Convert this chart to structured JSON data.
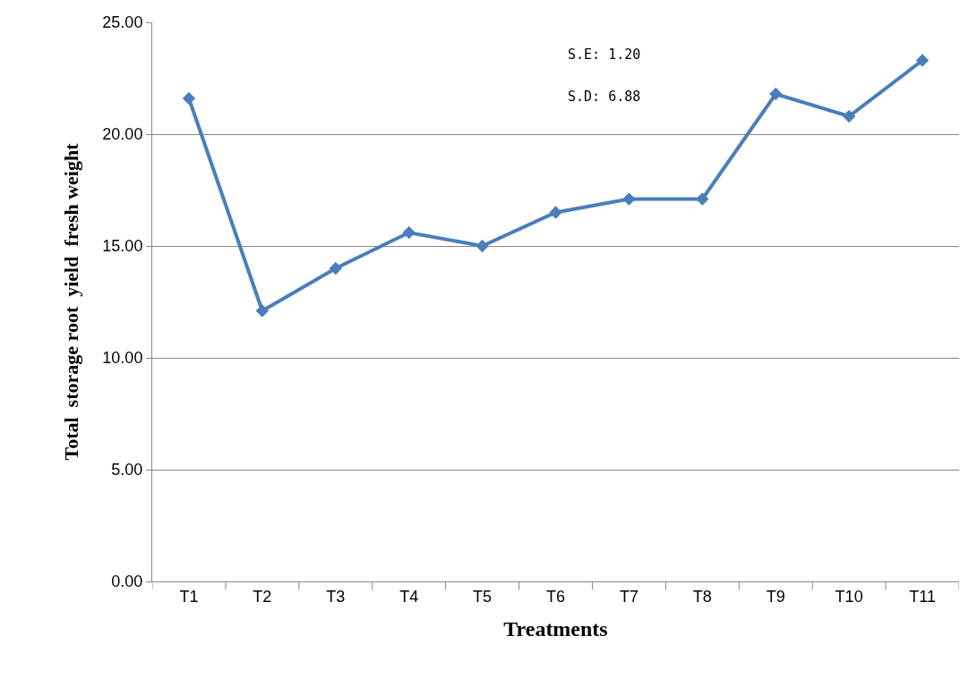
{
  "chart_data": {
    "type": "line",
    "xlabel": "Treatments",
    "ylabel": "Total  storage root  yield  fresh weight",
    "categories": [
      "T1",
      "T2",
      "T3",
      "T4",
      "T5",
      "T6",
      "T7",
      "T8",
      "T9",
      "T10",
      "T11"
    ],
    "series": [
      {
        "color": "#4a7ebb",
        "values": [
          21.6,
          12.1,
          14.0,
          15.6,
          15.0,
          16.5,
          17.1,
          17.1,
          21.8,
          20.8,
          23.3
        ]
      }
    ],
    "ylim": [
      0,
      25
    ],
    "yticks": [
      {
        "value": 0,
        "label": "0.00"
      },
      {
        "value": 5,
        "label": "5.00"
      },
      {
        "value": 10,
        "label": "10.00"
      },
      {
        "value": 15,
        "label": "15.00"
      },
      {
        "value": 20,
        "label": "20.00"
      },
      {
        "value": 25,
        "label": "25.00"
      }
    ],
    "grid": "y",
    "marker": "diamond",
    "line_style": "solid",
    "annotations": [
      "S.E: 1.20",
      "S.D: 6.88"
    ]
  }
}
